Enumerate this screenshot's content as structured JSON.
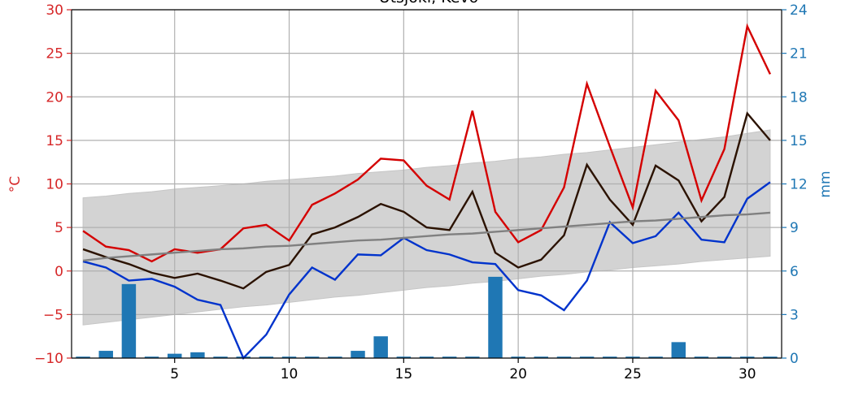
{
  "chart_data": {
    "type": "bar+line",
    "title": "Utsjoki, Kevo",
    "x": [
      1,
      2,
      3,
      4,
      5,
      6,
      7,
      8,
      9,
      10,
      11,
      12,
      13,
      14,
      15,
      16,
      17,
      18,
      19,
      20,
      21,
      22,
      23,
      24,
      25,
      26,
      27,
      28,
      29,
      30,
      31
    ],
    "xticks": [
      5,
      10,
      15,
      20,
      25,
      30
    ],
    "xlim": [
      0.5,
      31.5
    ],
    "y_left": {
      "label": "°C",
      "lim": [
        -10,
        30
      ],
      "ticks": [
        -10,
        -5,
        0,
        5,
        10,
        15,
        20,
        25,
        30
      ],
      "color": "#d62728"
    },
    "y_right": {
      "label": "mm",
      "lim": [
        0,
        24
      ],
      "ticks": [
        0,
        3,
        6,
        9,
        12,
        15,
        18,
        21,
        24
      ],
      "color": "#1f77b4"
    },
    "grid": true,
    "series": [
      {
        "axis": "left",
        "kind": "line",
        "color": "#d40000",
        "values": [
          4.6,
          2.8,
          2.4,
          1.1,
          2.5,
          2.1,
          2.5,
          4.9,
          5.3,
          3.5,
          7.6,
          8.9,
          10.5,
          12.9,
          12.7,
          9.8,
          8.2,
          18.4,
          6.8,
          3.3,
          4.7,
          9.6,
          21.5,
          14.3,
          7.3,
          20.7,
          17.3,
          8.1,
          14.0,
          28.1,
          22.6
        ]
      },
      {
        "axis": "left",
        "kind": "line",
        "color": "#2b1200",
        "values": [
          2.5,
          1.6,
          0.8,
          -0.2,
          -0.8,
          -0.3,
          -1.1,
          -2.0,
          -0.1,
          0.7,
          4.2,
          5.0,
          6.2,
          7.7,
          6.8,
          5.0,
          4.7,
          9.1,
          2.1,
          0.4,
          1.3,
          4.1,
          12.2,
          8.2,
          5.3,
          12.1,
          10.4,
          5.7,
          8.5,
          18.1,
          15.0
        ]
      },
      {
        "axis": "left",
        "kind": "line",
        "color": "#0033cc",
        "values": [
          1.1,
          0.4,
          -1.1,
          -0.9,
          -1.8,
          -3.3,
          -3.9,
          -10.0,
          -7.3,
          -2.7,
          0.4,
          -1.0,
          1.9,
          1.8,
          3.8,
          2.4,
          1.9,
          1.0,
          0.8,
          -2.2,
          -2.8,
          -4.5,
          -1.1,
          5.6,
          3.2,
          4.0,
          6.7,
          3.6,
          3.3,
          8.3,
          10.2
        ]
      },
      {
        "axis": "left",
        "kind": "line",
        "color": "#808080",
        "values": [
          1.2,
          1.5,
          1.7,
          1.9,
          2.1,
          2.3,
          2.5,
          2.6,
          2.8,
          2.9,
          3.1,
          3.3,
          3.5,
          3.6,
          3.8,
          4.0,
          4.2,
          4.3,
          4.5,
          4.7,
          4.9,
          5.1,
          5.3,
          5.5,
          5.7,
          5.8,
          6.0,
          6.2,
          6.4,
          6.5,
          6.7
        ]
      },
      {
        "axis": "left",
        "kind": "band",
        "color": "#d3d3d3",
        "lower": [
          -6.2,
          -5.9,
          -5.6,
          -5.3,
          -5.0,
          -4.7,
          -4.4,
          -4.1,
          -3.9,
          -3.6,
          -3.3,
          -3.0,
          -2.8,
          -2.5,
          -2.2,
          -1.9,
          -1.7,
          -1.4,
          -1.2,
          -0.9,
          -0.6,
          -0.4,
          -0.1,
          0.1,
          0.4,
          0.6,
          0.8,
          1.1,
          1.3,
          1.5,
          1.7
        ],
        "upper": [
          8.4,
          8.6,
          8.9,
          9.1,
          9.4,
          9.6,
          9.8,
          10.0,
          10.3,
          10.5,
          10.7,
          10.9,
          11.2,
          11.4,
          11.6,
          11.9,
          12.1,
          12.4,
          12.6,
          12.9,
          13.1,
          13.4,
          13.6,
          13.9,
          14.2,
          14.5,
          14.8,
          15.1,
          15.4,
          15.8,
          16.2
        ]
      },
      {
        "axis": "right",
        "kind": "bar",
        "color": "#1f77b4",
        "values": [
          0.1,
          0.5,
          5.1,
          0.1,
          0.3,
          0.4,
          0.1,
          0.1,
          0.1,
          0.1,
          0.1,
          0.1,
          0.5,
          1.5,
          0.1,
          0.1,
          0.1,
          0.1,
          5.6,
          0.1,
          0.1,
          0.1,
          0.1,
          0.1,
          0.1,
          0.1,
          1.1,
          0.1,
          0.1,
          0.1,
          0.1
        ]
      }
    ]
  }
}
